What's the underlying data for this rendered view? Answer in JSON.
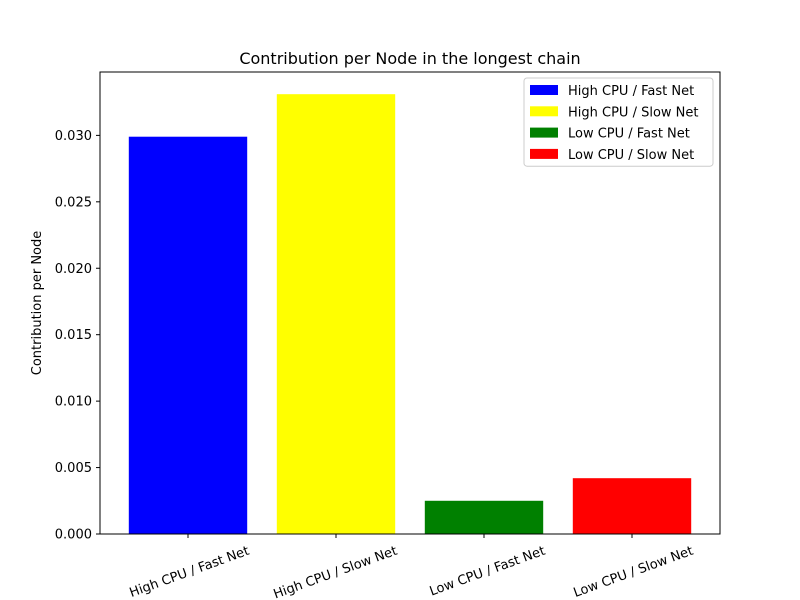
{
  "chart_data": {
    "type": "bar",
    "title": "Contribution per Node in the longest chain",
    "xlabel": "",
    "ylabel": "Contribution per Node",
    "categories": [
      "High CPU / Fast Net",
      "High CPU / Slow Net",
      "Low CPU / Fast Net",
      "Low CPU / Slow Net"
    ],
    "values": [
      0.0299,
      0.0331,
      0.0025,
      0.0042
    ],
    "colors": [
      "#0000ff",
      "#ffff00",
      "#008000",
      "#ff0000"
    ],
    "ylim": [
      0,
      0.03477
    ],
    "yticks": [
      "0.000",
      "0.005",
      "0.010",
      "0.015",
      "0.020",
      "0.025",
      "0.030"
    ],
    "ytick_values": [
      0,
      0.005,
      0.01,
      0.015,
      0.02,
      0.025,
      0.03
    ],
    "xtick_rotation": 20,
    "grid": false,
    "legend": {
      "placement": "top-right",
      "entries": [
        "High CPU / Fast Net",
        "High CPU / Slow Net",
        "Low CPU / Fast Net",
        "Low CPU / Slow Net"
      ]
    }
  }
}
